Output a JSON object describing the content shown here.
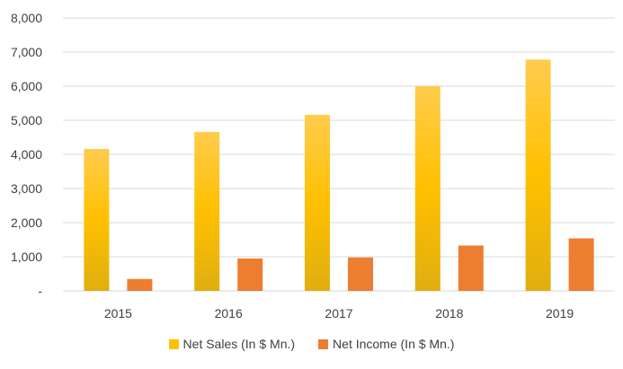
{
  "chart_data": {
    "type": "bar",
    "title": "",
    "xlabel": "",
    "ylabel": "",
    "categories": [
      "2015",
      "2016",
      "2017",
      "2018",
      "2019"
    ],
    "series": [
      {
        "name": "Net Sales (In $ Mn.)",
        "values": [
          4160,
          4660,
          5160,
          6000,
          6780
        ],
        "color": "#FFC000"
      },
      {
        "name": "Net Income (In $ Mn.)",
        "values": [
          350,
          950,
          980,
          1330,
          1540
        ],
        "color": "#ED7D31"
      }
    ],
    "ylim": [
      0,
      8000
    ],
    "yticks": [
      {
        "value": 0,
        "label": "-"
      },
      {
        "value": 1000,
        "label": "1,000"
      },
      {
        "value": 2000,
        "label": "2,000"
      },
      {
        "value": 3000,
        "label": "3,000"
      },
      {
        "value": 4000,
        "label": "4,000"
      },
      {
        "value": 5000,
        "label": "5,000"
      },
      {
        "value": 6000,
        "label": "6,000"
      },
      {
        "value": 7000,
        "label": "7,000"
      },
      {
        "value": 8000,
        "label": "8,000"
      }
    ],
    "grid": true,
    "legend_position": "bottom"
  }
}
